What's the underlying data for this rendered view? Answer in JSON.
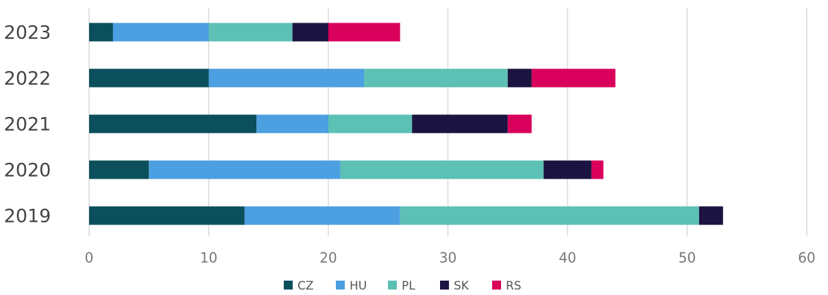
{
  "chart_data": {
    "type": "stacked_bar_horizontal",
    "categories": [
      "2023",
      "2022",
      "2021",
      "2020",
      "2019"
    ],
    "series": [
      {
        "name": "CZ",
        "color": "#0b4f5c",
        "values": [
          2,
          10,
          14,
          5,
          13
        ]
      },
      {
        "name": "HU",
        "color": "#4c9fe0",
        "values": [
          8,
          13,
          6,
          16,
          13
        ]
      },
      {
        "name": "PL",
        "color": "#5cc0b5",
        "values": [
          7,
          12,
          7,
          17,
          25
        ]
      },
      {
        "name": "SK",
        "color": "#1b1340",
        "values": [
          3,
          2,
          8,
          4,
          2
        ]
      },
      {
        "name": "RS",
        "color": "#d8005a",
        "values": [
          6,
          7,
          2,
          1,
          0
        ]
      }
    ],
    "xlim": [
      0,
      60
    ],
    "xticks": [
      0,
      10,
      20,
      30,
      40,
      50,
      60
    ],
    "grid": true,
    "legend": "bottom"
  }
}
